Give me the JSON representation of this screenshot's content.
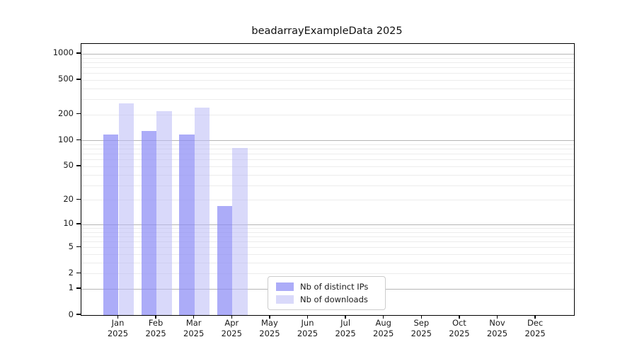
{
  "title": "beadarrayExampleData 2025",
  "colors": {
    "bar_distinct_ips": "rgba(140,140,245,0.72)",
    "bar_downloads": "rgba(185,185,246,0.55)",
    "bar_distinct_ips_solid": "#a6a6f7",
    "bar_downloads_solid": "#d9d9fb",
    "grid_major": "#b5b5b5",
    "grid_minor": "#ececec",
    "axis": "#000000"
  },
  "chart_data": {
    "type": "bar",
    "title": "beadarrayExampleData 2025",
    "categories": [
      "Jan 2025",
      "Feb 2025",
      "Mar 2025",
      "Apr 2025",
      "May 2025",
      "Jun 2025",
      "Jul 2025",
      "Aug 2025",
      "Sep 2025",
      "Oct 2025",
      "Nov 2025",
      "Dec 2025"
    ],
    "series": [
      {
        "name": "Nb of distinct IPs",
        "color": "rgba(140,140,245,0.72)",
        "values": [
          118,
          130,
          118,
          17,
          0,
          0,
          0,
          0,
          0,
          0,
          0,
          0
        ]
      },
      {
        "name": "Nb of downloads",
        "color": "rgba(185,185,246,0.55)",
        "values": [
          270,
          219,
          239,
          82,
          0,
          0,
          0,
          0,
          0,
          0,
          0,
          0
        ]
      }
    ],
    "xlabel": "",
    "ylabel": "",
    "yscale": "log10(1+y)",
    "yticks": [
      1000,
      500,
      200,
      100,
      50,
      20,
      10,
      5,
      2,
      1,
      0
    ],
    "ylim": [
      0,
      1300
    ],
    "grid": "horizontal major+minor",
    "legend_position": "inside bottom center-right"
  }
}
